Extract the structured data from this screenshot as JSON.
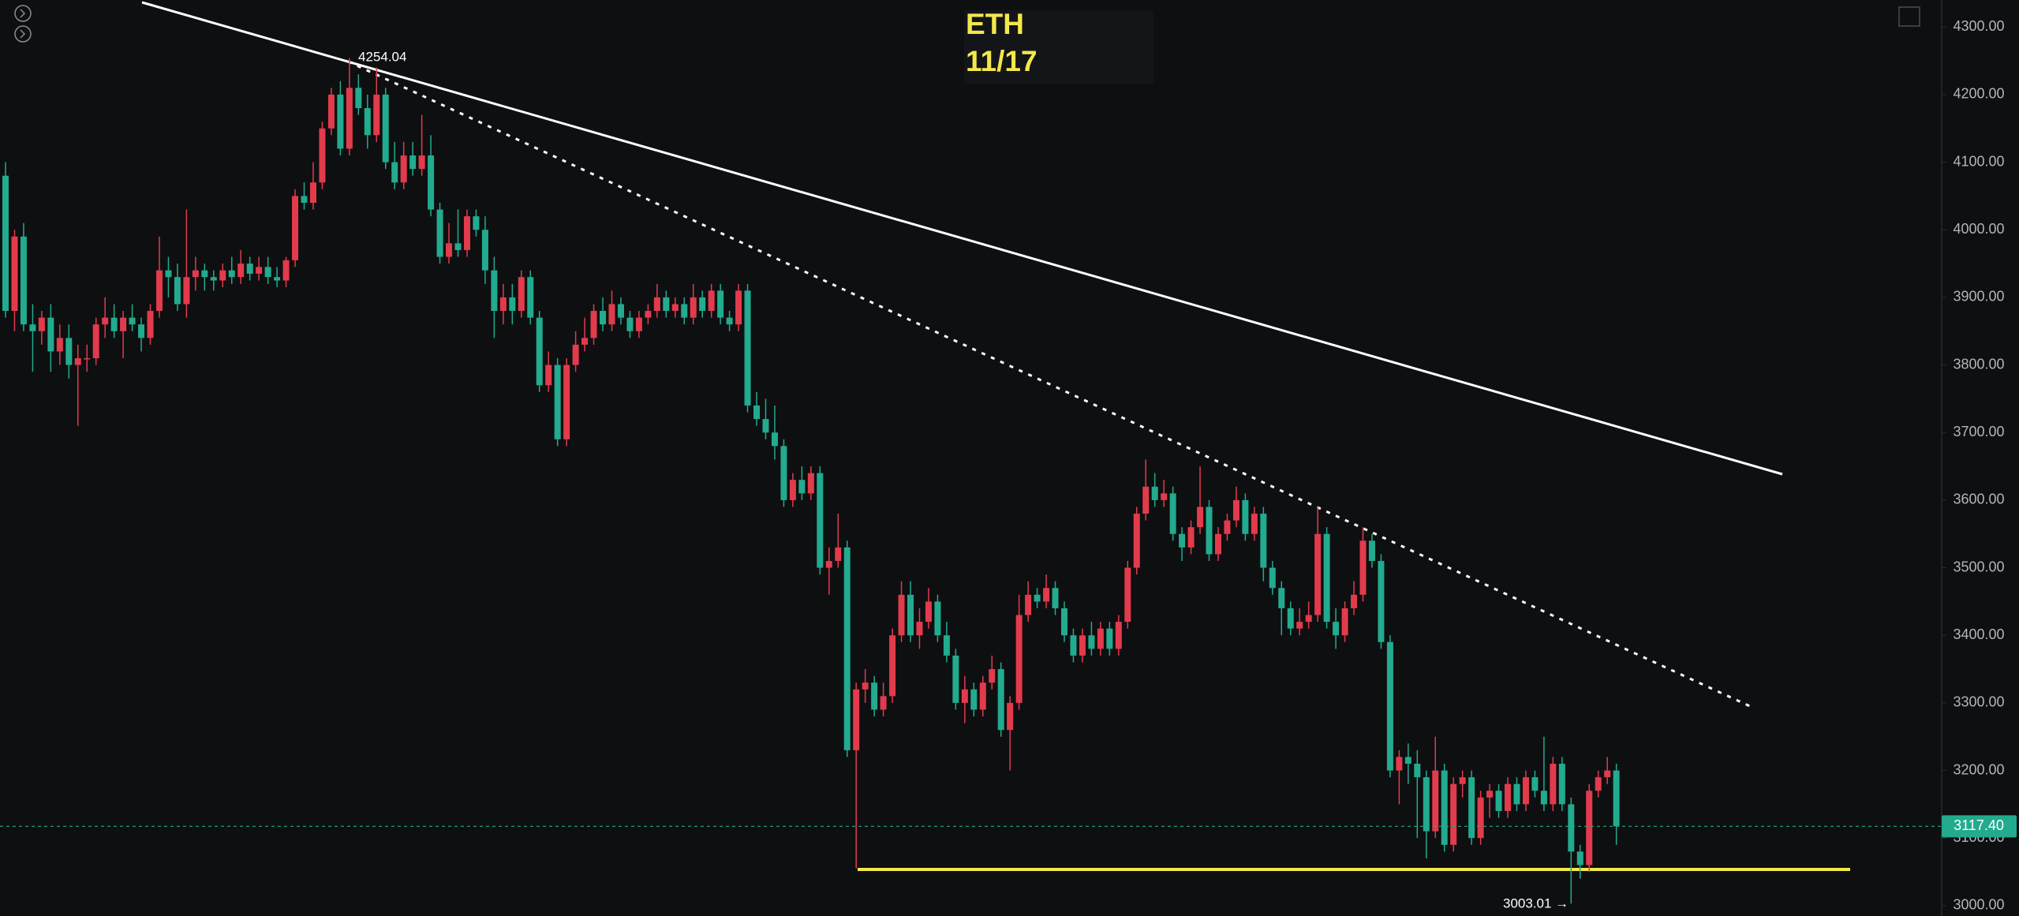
{
  "chart_data": {
    "type": "candlestick",
    "title": "ETH",
    "subtitle": "11/17",
    "up_color": "#e23b4c",
    "down_color": "#22ab8e",
    "ylim": [
      2984.7,
      4340
    ],
    "yticks": [
      {
        "value": 3000,
        "label": "3000.00"
      },
      {
        "value": 3100,
        "label": "3100.00"
      },
      {
        "value": 3200,
        "label": "3200.00"
      },
      {
        "value": 3300,
        "label": "3300.00"
      },
      {
        "value": 3400,
        "label": "3400.00"
      },
      {
        "value": 3500,
        "label": "3500.00"
      },
      {
        "value": 3600,
        "label": "3600.00"
      },
      {
        "value": 3700,
        "label": "3700.00"
      },
      {
        "value": 3800,
        "label": "3800.00"
      },
      {
        "value": 3900,
        "label": "3900.00"
      },
      {
        "value": 4000,
        "label": "4000.00"
      },
      {
        "value": 4100,
        "label": "4100.00"
      },
      {
        "value": 4200,
        "label": "4200.00"
      },
      {
        "value": 4300,
        "label": "4300.00"
      }
    ],
    "last_price": {
      "value": 3117.4,
      "label": "3117.40"
    },
    "annotations": {
      "high": "4254.04",
      "low": "3003.01 →"
    },
    "ohlc": [
      [
        4080,
        4100,
        3870,
        3880
      ],
      [
        3880,
        4000,
        3850,
        3990
      ],
      [
        3990,
        4010,
        3850,
        3860
      ],
      [
        3860,
        3890,
        3790,
        3850
      ],
      [
        3850,
        3880,
        3830,
        3870
      ],
      [
        3870,
        3890,
        3790,
        3820
      ],
      [
        3820,
        3860,
        3800,
        3840
      ],
      [
        3840,
        3860,
        3780,
        3800
      ],
      [
        3800,
        3830,
        3710,
        3810
      ],
      [
        3810,
        3830,
        3790,
        3810
      ],
      [
        3810,
        3870,
        3800,
        3860
      ],
      [
        3860,
        3900,
        3840,
        3870
      ],
      [
        3870,
        3890,
        3840,
        3850
      ],
      [
        3850,
        3880,
        3810,
        3870
      ],
      [
        3870,
        3890,
        3850,
        3860
      ],
      [
        3860,
        3870,
        3820,
        3840
      ],
      [
        3840,
        3890,
        3830,
        3880
      ],
      [
        3880,
        3990,
        3870,
        3940
      ],
      [
        3940,
        3960,
        3900,
        3930
      ],
      [
        3930,
        3950,
        3880,
        3890
      ],
      [
        3890,
        4030,
        3870,
        3930
      ],
      [
        3930,
        3960,
        3910,
        3940
      ],
      [
        3940,
        3950,
        3910,
        3930
      ],
      [
        3930,
        3940,
        3910,
        3925
      ],
      [
        3925,
        3950,
        3915,
        3940
      ],
      [
        3940,
        3960,
        3920,
        3930
      ],
      [
        3930,
        3970,
        3920,
        3950
      ],
      [
        3950,
        3960,
        3925,
        3935
      ],
      [
        3935,
        3960,
        3925,
        3945
      ],
      [
        3945,
        3960,
        3920,
        3930
      ],
      [
        3930,
        3945,
        3915,
        3925
      ],
      [
        3925,
        3960,
        3915,
        3955
      ],
      [
        3955,
        4060,
        3945,
        4050
      ],
      [
        4050,
        4070,
        4030,
        4040
      ],
      [
        4040,
        4100,
        4030,
        4070
      ],
      [
        4070,
        4160,
        4060,
        4150
      ],
      [
        4150,
        4210,
        4140,
        4200
      ],
      [
        4200,
        4220,
        4110,
        4120
      ],
      [
        4120,
        4254.04,
        4110,
        4210
      ],
      [
        4210,
        4230,
        4170,
        4180
      ],
      [
        4180,
        4200,
        4120,
        4140
      ],
      [
        4140,
        4240,
        4130,
        4200
      ],
      [
        4200,
        4210,
        4090,
        4100
      ],
      [
        4100,
        4130,
        4060,
        4070
      ],
      [
        4070,
        4130,
        4060,
        4110
      ],
      [
        4110,
        4130,
        4080,
        4090
      ],
      [
        4090,
        4170,
        4080,
        4110
      ],
      [
        4110,
        4140,
        4020,
        4030
      ],
      [
        4030,
        4040,
        3950,
        3960
      ],
      [
        3960,
        4010,
        3950,
        3980
      ],
      [
        3980,
        4030,
        3960,
        3970
      ],
      [
        3970,
        4030,
        3960,
        4020
      ],
      [
        4020,
        4030,
        3990,
        4000
      ],
      [
        4000,
        4020,
        3920,
        3940
      ],
      [
        3940,
        3960,
        3840,
        3880
      ],
      [
        3880,
        3920,
        3860,
        3900
      ],
      [
        3900,
        3920,
        3860,
        3880
      ],
      [
        3880,
        3940,
        3870,
        3930
      ],
      [
        3930,
        3940,
        3860,
        3870
      ],
      [
        3870,
        3880,
        3760,
        3770
      ],
      [
        3770,
        3820,
        3760,
        3800
      ],
      [
        3800,
        3810,
        3680,
        3690
      ],
      [
        3690,
        3810,
        3680,
        3800
      ],
      [
        3800,
        3850,
        3790,
        3830
      ],
      [
        3830,
        3870,
        3820,
        3840
      ],
      [
        3840,
        3890,
        3830,
        3880
      ],
      [
        3880,
        3900,
        3850,
        3860
      ],
      [
        3860,
        3910,
        3850,
        3890
      ],
      [
        3890,
        3900,
        3860,
        3870
      ],
      [
        3870,
        3880,
        3840,
        3850
      ],
      [
        3850,
        3880,
        3840,
        3870
      ],
      [
        3870,
        3890,
        3860,
        3880
      ],
      [
        3880,
        3920,
        3870,
        3900
      ],
      [
        3900,
        3910,
        3870,
        3880
      ],
      [
        3880,
        3900,
        3870,
        3890
      ],
      [
        3890,
        3900,
        3860,
        3870
      ],
      [
        3870,
        3920,
        3860,
        3900
      ],
      [
        3900,
        3910,
        3870,
        3880
      ],
      [
        3880,
        3920,
        3870,
        3910
      ],
      [
        3910,
        3920,
        3860,
        3870
      ],
      [
        3870,
        3880,
        3850,
        3860
      ],
      [
        3860,
        3920,
        3850,
        3910
      ],
      [
        3910,
        3920,
        3730,
        3740
      ],
      [
        3740,
        3760,
        3710,
        3720
      ],
      [
        3720,
        3750,
        3690,
        3700
      ],
      [
        3700,
        3740,
        3660,
        3680
      ],
      [
        3680,
        3690,
        3590,
        3600
      ],
      [
        3600,
        3640,
        3590,
        3630
      ],
      [
        3630,
        3650,
        3600,
        3610
      ],
      [
        3610,
        3650,
        3600,
        3640
      ],
      [
        3640,
        3650,
        3490,
        3500
      ],
      [
        3500,
        3530,
        3460,
        3510
      ],
      [
        3510,
        3580,
        3500,
        3530
      ],
      [
        3530,
        3540,
        3220,
        3230
      ],
      [
        3230,
        3330,
        3055,
        3320
      ],
      [
        3320,
        3350,
        3300,
        3330
      ],
      [
        3330,
        3340,
        3280,
        3290
      ],
      [
        3290,
        3330,
        3280,
        3310
      ],
      [
        3310,
        3410,
        3300,
        3400
      ],
      [
        3400,
        3480,
        3390,
        3460
      ],
      [
        3460,
        3480,
        3390,
        3400
      ],
      [
        3400,
        3440,
        3380,
        3420
      ],
      [
        3420,
        3470,
        3410,
        3450
      ],
      [
        3450,
        3460,
        3390,
        3400
      ],
      [
        3400,
        3420,
        3360,
        3370
      ],
      [
        3370,
        3380,
        3290,
        3300
      ],
      [
        3300,
        3340,
        3270,
        3320
      ],
      [
        3320,
        3330,
        3280,
        3290
      ],
      [
        3290,
        3340,
        3280,
        3330
      ],
      [
        3330,
        3370,
        3320,
        3350
      ],
      [
        3350,
        3360,
        3250,
        3260
      ],
      [
        3260,
        3310,
        3200,
        3300
      ],
      [
        3300,
        3460,
        3290,
        3430
      ],
      [
        3430,
        3480,
        3420,
        3460
      ],
      [
        3460,
        3470,
        3440,
        3450
      ],
      [
        3450,
        3490,
        3440,
        3470
      ],
      [
        3470,
        3480,
        3430,
        3440
      ],
      [
        3440,
        3450,
        3390,
        3400
      ],
      [
        3400,
        3410,
        3360,
        3370
      ],
      [
        3370,
        3410,
        3360,
        3400
      ],
      [
        3400,
        3420,
        3370,
        3380
      ],
      [
        3380,
        3420,
        3370,
        3410
      ],
      [
        3410,
        3420,
        3370,
        3380
      ],
      [
        3380,
        3430,
        3370,
        3420
      ],
      [
        3420,
        3510,
        3410,
        3500
      ],
      [
        3500,
        3590,
        3490,
        3580
      ],
      [
        3580,
        3660,
        3570,
        3620
      ],
      [
        3620,
        3640,
        3590,
        3600
      ],
      [
        3600,
        3630,
        3590,
        3610
      ],
      [
        3610,
        3620,
        3540,
        3550
      ],
      [
        3550,
        3560,
        3510,
        3530
      ],
      [
        3530,
        3570,
        3520,
        3560
      ],
      [
        3560,
        3650,
        3550,
        3590
      ],
      [
        3590,
        3600,
        3510,
        3520
      ],
      [
        3520,
        3560,
        3510,
        3550
      ],
      [
        3550,
        3580,
        3540,
        3570
      ],
      [
        3570,
        3620,
        3560,
        3600
      ],
      [
        3600,
        3610,
        3540,
        3550
      ],
      [
        3550,
        3590,
        3540,
        3580
      ],
      [
        3580,
        3590,
        3480,
        3500
      ],
      [
        3500,
        3510,
        3460,
        3470
      ],
      [
        3470,
        3480,
        3400,
        3440
      ],
      [
        3440,
        3450,
        3400,
        3410
      ],
      [
        3410,
        3440,
        3400,
        3420
      ],
      [
        3420,
        3450,
        3410,
        3430
      ],
      [
        3430,
        3590,
        3420,
        3550
      ],
      [
        3550,
        3560,
        3410,
        3420
      ],
      [
        3420,
        3440,
        3380,
        3400
      ],
      [
        3400,
        3450,
        3390,
        3440
      ],
      [
        3440,
        3480,
        3430,
        3460
      ],
      [
        3460,
        3560,
        3450,
        3540
      ],
      [
        3540,
        3550,
        3500,
        3510
      ],
      [
        3510,
        3520,
        3380,
        3390
      ],
      [
        3390,
        3400,
        3190,
        3200
      ],
      [
        3200,
        3230,
        3150,
        3220
      ],
      [
        3220,
        3240,
        3180,
        3210
      ],
      [
        3210,
        3230,
        3100,
        3190
      ],
      [
        3190,
        3200,
        3070,
        3110
      ],
      [
        3110,
        3250,
        3100,
        3200
      ],
      [
        3200,
        3210,
        3080,
        3090
      ],
      [
        3090,
        3190,
        3080,
        3180
      ],
      [
        3180,
        3200,
        3160,
        3190
      ],
      [
        3190,
        3200,
        3090,
        3100
      ],
      [
        3100,
        3170,
        3090,
        3160
      ],
      [
        3160,
        3180,
        3130,
        3170
      ],
      [
        3170,
        3180,
        3130,
        3140
      ],
      [
        3140,
        3190,
        3130,
        3180
      ],
      [
        3180,
        3190,
        3140,
        3150
      ],
      [
        3150,
        3200,
        3140,
        3190
      ],
      [
        3190,
        3200,
        3160,
        3170
      ],
      [
        3170,
        3250,
        3140,
        3150
      ],
      [
        3150,
        3220,
        3140,
        3210
      ],
      [
        3210,
        3220,
        3140,
        3150
      ],
      [
        3150,
        3160,
        3003.01,
        3080
      ],
      [
        3080,
        3090,
        3040,
        3060
      ],
      [
        3060,
        3180,
        3050,
        3170
      ],
      [
        3170,
        3200,
        3160,
        3190
      ],
      [
        3190,
        3220,
        3180,
        3200
      ],
      [
        3200,
        3210,
        3090,
        3117.4
      ]
    ]
  }
}
